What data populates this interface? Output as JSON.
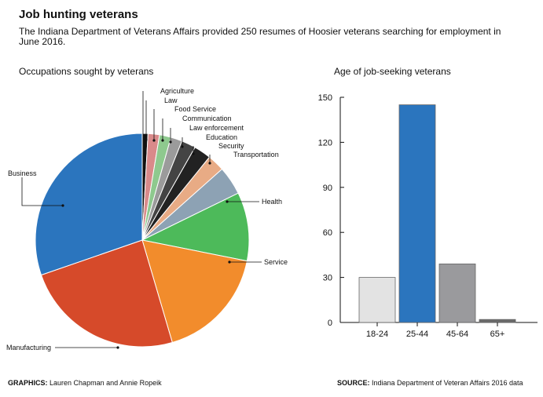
{
  "header": {
    "title": "Job hunting veterans",
    "subtitle": "The Indiana Department of Veterans Affairs provided 250 resumes of Hoosier veterans searching for employment in June 2016."
  },
  "footer": {
    "graphics_label": "GRAPHICS:",
    "graphics_value": "Lauren Chapman and Annie Ropeik",
    "source_label": "SOURCE:",
    "source_value": "Indiana Department of Veteran Affairs 2016 data"
  },
  "chart_data": [
    {
      "type": "pie",
      "title": "Occupations sought by veterans",
      "slices": [
        {
          "label": "Agriculture",
          "value": 1,
          "color": "#111111"
        },
        {
          "label": "Law",
          "value": 2,
          "color": "#d98a8a"
        },
        {
          "label": "Food Service",
          "value": 2,
          "color": "#8ec98e"
        },
        {
          "label": "Communication",
          "value": 2,
          "color": "#9b9b9b"
        },
        {
          "label": "Law enforcement",
          "value": 2.5,
          "color": "#444444"
        },
        {
          "label": "Education",
          "value": 3,
          "color": "#222222"
        },
        {
          "label": "Security",
          "value": 3,
          "color": "#e8ab85"
        },
        {
          "label": "Transportation",
          "value": 5,
          "color": "#8da2b4"
        },
        {
          "label": "Health",
          "value": 12,
          "color": "#4dba5a"
        },
        {
          "label": "Service",
          "value": 20,
          "color": "#f28c2c"
        },
        {
          "label": "Manufacturing",
          "value": 28,
          "color": "#d64a2a"
        },
        {
          "label": "Business",
          "value": 35,
          "color": "#2b75be"
        }
      ]
    },
    {
      "type": "bar",
      "title": "Age of job-seeking veterans",
      "categories": [
        "18-24",
        "25-44",
        "45-64",
        "65+"
      ],
      "values": [
        30,
        145,
        39,
        2
      ],
      "colors": [
        "#e3e3e3",
        "#2b75be",
        "#9a9a9d",
        "#6b6b6b"
      ],
      "ylim": [
        0,
        150
      ],
      "yticks": [
        0,
        30,
        60,
        90,
        120,
        150
      ]
    }
  ]
}
